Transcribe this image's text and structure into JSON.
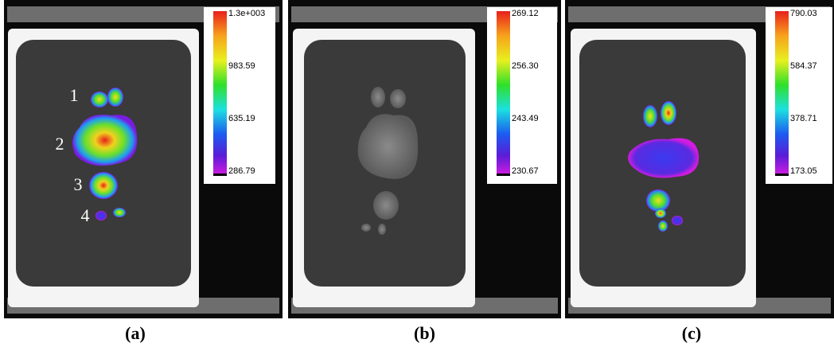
{
  "panels": [
    {
      "label": "(a)",
      "colorbar_ticks": [
        "1.3e+003",
        "983.59",
        "635.19",
        "286.79"
      ],
      "region_labels": [
        "1",
        "2",
        "3",
        "4"
      ]
    },
    {
      "label": "(b)",
      "colorbar_ticks": [
        "269.12",
        "256.30",
        "243.49",
        "230.67"
      ]
    },
    {
      "label": "(c)",
      "colorbar_ticks": [
        "790.03",
        "584.37",
        "378.71",
        "173.05"
      ]
    }
  ]
}
